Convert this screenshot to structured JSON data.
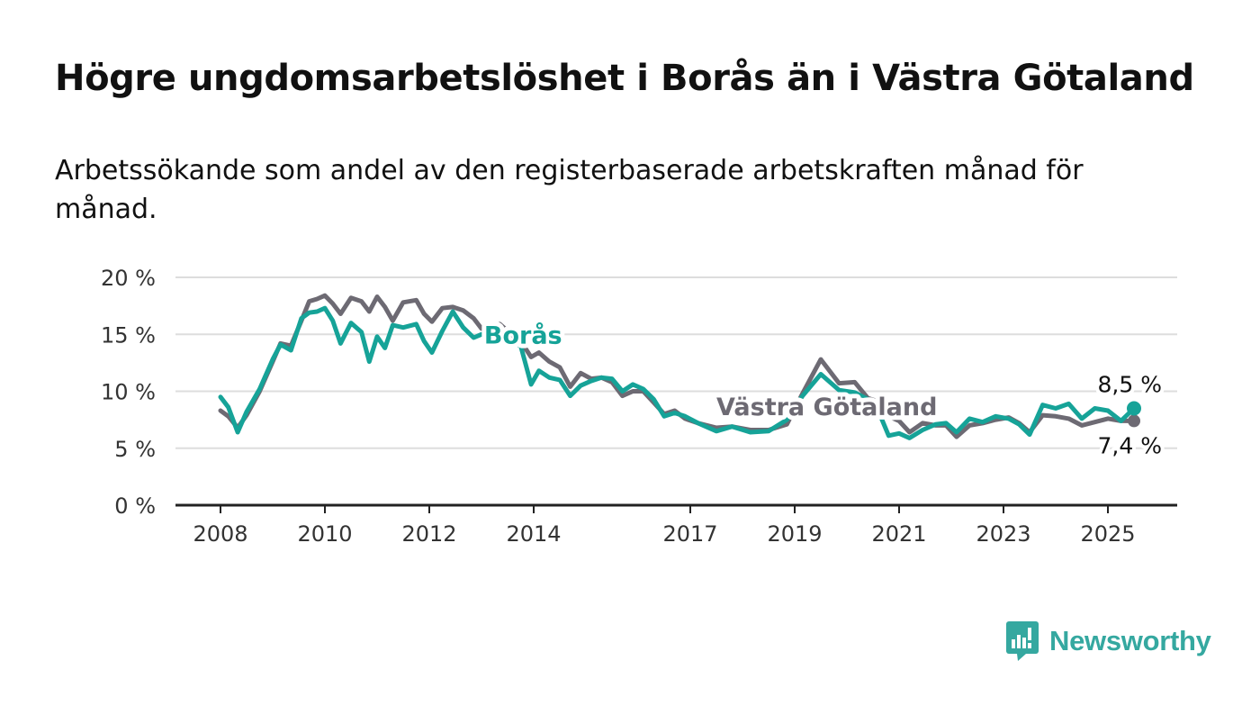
{
  "title": "Högre ungdomsarbetslöshet i Borås än i Västra Götaland",
  "subtitle": "Arbetssökande som andel av den registerbaserade arbetskraften månad för månad.",
  "brand": "Newsworthy",
  "colors": {
    "boras": "#16a398",
    "vastra": "#6d6a73",
    "grid": "#dddddd",
    "axis": "#222222",
    "brand": "#35a8a0"
  },
  "chart_data": {
    "type": "line",
    "ylim": [
      0,
      20
    ],
    "yticks": [
      0,
      5,
      10,
      15,
      20
    ],
    "ytick_labels": [
      "0 %",
      "5 %",
      "10 %",
      "15 %",
      "20 %"
    ],
    "xlim": [
      2007.25,
      2026.4
    ],
    "xticks": [
      2008,
      2010,
      2012,
      2014,
      2017,
      2019,
      2021,
      2023,
      2025
    ],
    "xtick_labels": [
      "2008",
      "2010",
      "2012",
      "2014",
      "2017",
      "2019",
      "2021",
      "2023",
      "2025"
    ],
    "grid": true,
    "series": [
      {
        "name": "Borås",
        "color": "#16a398",
        "end_label": "8,5 %",
        "x": [
          2008.0,
          2008.15,
          2008.33,
          2008.5,
          2008.75,
          2009.0,
          2009.15,
          2009.35,
          2009.55,
          2009.7,
          2009.85,
          2010.0,
          2010.15,
          2010.3,
          2010.5,
          2010.7,
          2010.85,
          2011.0,
          2011.15,
          2011.3,
          2011.5,
          2011.75,
          2011.9,
          2012.05,
          2012.25,
          2012.45,
          2012.65,
          2012.85,
          2013.0,
          2013.15,
          2013.35,
          2013.55,
          2013.75,
          2013.95,
          2014.1,
          2014.3,
          2014.5,
          2014.7,
          2014.9,
          2015.1,
          2015.3,
          2015.5,
          2015.7,
          2015.9,
          2016.1,
          2016.3,
          2016.5,
          2016.7,
          2016.9,
          2017.15,
          2017.5,
          2017.8,
          2018.15,
          2018.5,
          2018.85,
          2019.15,
          2019.5,
          2019.85,
          2020.15,
          2020.4,
          2020.6,
          2020.8,
          2021.0,
          2021.2,
          2021.45,
          2021.7,
          2021.9,
          2022.1,
          2022.35,
          2022.6,
          2022.85,
          2023.1,
          2023.3,
          2023.5,
          2023.75,
          2024.0,
          2024.25,
          2024.5,
          2024.75,
          2025.0,
          2025.25,
          2025.5
        ],
        "y": [
          9.5,
          8.6,
          6.4,
          8.2,
          10.2,
          12.8,
          14.1,
          13.6,
          16.4,
          16.9,
          17.0,
          17.3,
          16.2,
          14.2,
          16.0,
          15.2,
          12.6,
          14.8,
          13.8,
          15.8,
          15.6,
          15.9,
          14.4,
          13.4,
          15.3,
          17.0,
          15.6,
          14.7,
          15.0,
          14.8,
          14.6,
          14.3,
          14.0,
          10.6,
          11.8,
          11.2,
          11.0,
          9.6,
          10.5,
          10.9,
          11.2,
          11.1,
          10.0,
          10.6,
          10.2,
          9.3,
          7.8,
          8.1,
          7.8,
          7.2,
          6.5,
          6.9,
          6.4,
          6.5,
          7.5,
          9.6,
          11.5,
          10.1,
          9.9,
          9.3,
          8.3,
          6.1,
          6.3,
          5.9,
          6.6,
          7.1,
          7.2,
          6.4,
          7.6,
          7.3,
          7.8,
          7.6,
          7.1,
          6.2,
          8.8,
          8.5,
          8.9,
          7.6,
          8.5,
          8.3,
          7.4,
          8.5
        ]
      },
      {
        "name": "Västra Götaland",
        "color": "#6d6a73",
        "end_label": "7,4 %",
        "x": [
          2008.0,
          2008.15,
          2008.33,
          2008.5,
          2008.75,
          2009.0,
          2009.15,
          2009.35,
          2009.55,
          2009.7,
          2009.85,
          2010.0,
          2010.15,
          2010.3,
          2010.5,
          2010.7,
          2010.85,
          2011.0,
          2011.15,
          2011.3,
          2011.5,
          2011.75,
          2011.9,
          2012.05,
          2012.25,
          2012.45,
          2012.65,
          2012.85,
          2013.0,
          2013.15,
          2013.35,
          2013.55,
          2013.75,
          2013.95,
          2014.1,
          2014.3,
          2014.5,
          2014.7,
          2014.9,
          2015.1,
          2015.3,
          2015.5,
          2015.7,
          2015.9,
          2016.1,
          2016.3,
          2016.5,
          2016.7,
          2016.9,
          2017.15,
          2017.5,
          2017.8,
          2018.15,
          2018.5,
          2018.85,
          2019.15,
          2019.5,
          2019.85,
          2020.15,
          2020.4,
          2020.6,
          2020.8,
          2021.0,
          2021.2,
          2021.45,
          2021.7,
          2021.9,
          2022.1,
          2022.35,
          2022.6,
          2022.85,
          2023.1,
          2023.3,
          2023.5,
          2023.75,
          2024.0,
          2024.25,
          2024.5,
          2024.75,
          2025.0,
          2025.25,
          2025.5
        ],
        "y": [
          8.3,
          7.8,
          6.8,
          7.9,
          10.0,
          12.6,
          14.2,
          14.0,
          16.2,
          17.9,
          18.1,
          18.4,
          17.7,
          16.8,
          18.2,
          17.9,
          17.0,
          18.3,
          17.4,
          16.2,
          17.8,
          18.0,
          16.8,
          16.1,
          17.3,
          17.4,
          17.1,
          16.4,
          15.5,
          15.3,
          15.9,
          15.1,
          14.4,
          13.0,
          13.4,
          12.6,
          12.1,
          10.4,
          11.6,
          11.1,
          11.2,
          10.8,
          9.6,
          10.0,
          10.0,
          9.0,
          8.0,
          8.3,
          7.6,
          7.2,
          6.8,
          6.9,
          6.6,
          6.6,
          7.1,
          9.8,
          12.8,
          10.7,
          10.8,
          9.4,
          9.1,
          7.8,
          7.4,
          6.4,
          7.2,
          7.0,
          7.0,
          6.0,
          7.0,
          7.2,
          7.5,
          7.7,
          7.2,
          6.4,
          7.9,
          7.8,
          7.6,
          7.0,
          7.3,
          7.6,
          7.4,
          7.4
        ]
      }
    ],
    "annotations": [
      {
        "text": "Borås",
        "series": "Borås",
        "x": 2013.05,
        "y": 14.2
      },
      {
        "text": "Västra Götaland",
        "series": "Västra Götaland",
        "x": 2017.5,
        "y": 7.9
      }
    ]
  }
}
